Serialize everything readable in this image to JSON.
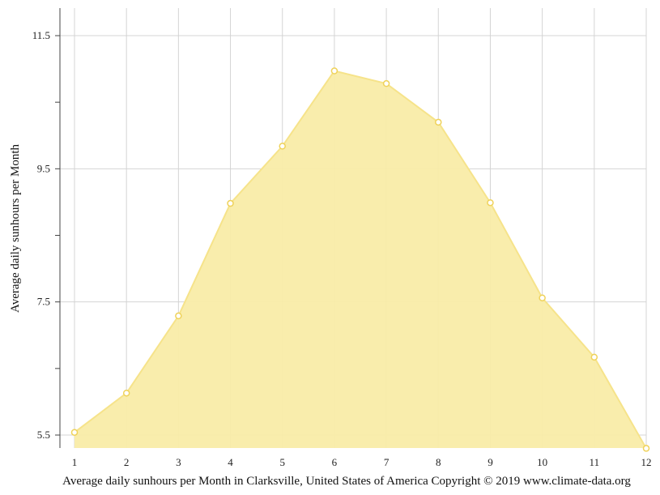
{
  "colors": {
    "area_fill": "#f9eca8",
    "line": "#f6e38a",
    "point_stroke": "#efd25a",
    "point_fill": "#ffffff",
    "grid": "#d4d4d4",
    "axis": "#444444"
  },
  "caption": "Average daily sunhours per Month in Clarksville, United States of America Copyright © 2019 www.climate-data.org",
  "chart_data": {
    "type": "area",
    "title": "",
    "ylabel": "Average daily sunhours per Month",
    "xlabel": "",
    "x": [
      1,
      2,
      3,
      4,
      5,
      6,
      7,
      8,
      9,
      10,
      11,
      12
    ],
    "x_tick_labels": [
      "1",
      "2",
      "3",
      "4",
      "5",
      "6",
      "7",
      "8",
      "9",
      "10",
      "11",
      "12"
    ],
    "y_tick_labels": [
      "11.5",
      "9.5",
      "7.5",
      "5.5"
    ],
    "y_ticks": [
      11.5,
      9.5,
      7.5,
      5.5
    ],
    "ylim": [
      5.3,
      11.9
    ],
    "grid": true,
    "series": [
      {
        "values": [
          5.54,
          6.13,
          7.29,
          8.98,
          9.84,
          10.97,
          10.78,
          10.2,
          8.99,
          7.56,
          6.67,
          5.3
        ]
      }
    ]
  }
}
